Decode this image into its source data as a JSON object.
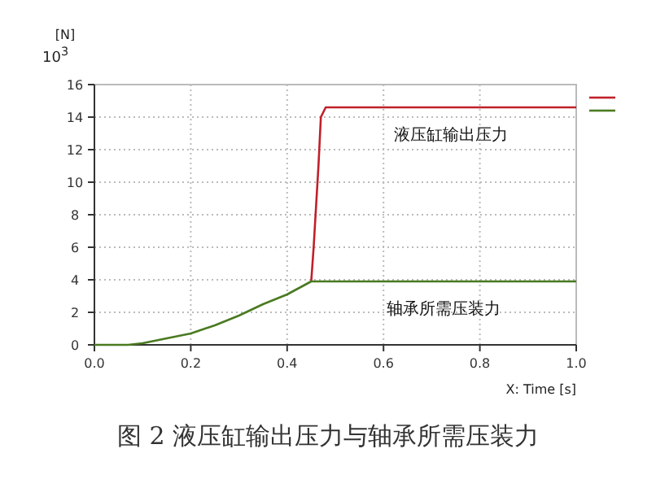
{
  "chart_data": {
    "type": "line",
    "title": "图 2 液压缸输出压力与轴承所需压装力",
    "xlabel": "X: Time [s]",
    "ylabel": "[N]",
    "annotations": [
      "10$^{3}$"
    ],
    "series": [
      {
        "name": "液压缸输出压力",
        "color": "#c0202a",
        "x": [
          0.45,
          0.455,
          0.46,
          0.465,
          0.47,
          0.48,
          1.0
        ],
        "values": [
          3.9,
          6,
          8.5,
          11,
          14,
          14.6,
          14.6
        ]
      },
      {
        "name": "轴承所需压装力",
        "color": "#4a7a20",
        "x": [
          0,
          0.07,
          0.1,
          0.15,
          0.2,
          0.25,
          0.3,
          0.35,
          0.4,
          0.45,
          1.0
        ],
        "values": [
          0,
          0,
          0.1,
          0.4,
          0.7,
          1.2,
          1.8,
          2.5,
          3.1,
          3.9,
          3.9
        ]
      }
    ],
    "xlim": [
      0,
      1
    ],
    "ylim": [
      0,
      16
    ],
    "xticks": [
      {
        "value": 0,
        "label": "0.0"
      },
      {
        "value": 0.2,
        "label": "0.2"
      },
      {
        "value": 0.4,
        "label": "0.4"
      },
      {
        "value": 0.6,
        "label": "0.6"
      },
      {
        "value": 0.8,
        "label": "0.8"
      },
      {
        "value": 1,
        "label": "1.0"
      }
    ],
    "yticks": [
      0,
      2,
      4,
      6,
      8,
      10,
      12,
      14,
      16
    ],
    "grid": true,
    "line_style": "solid",
    "marker": "none"
  }
}
